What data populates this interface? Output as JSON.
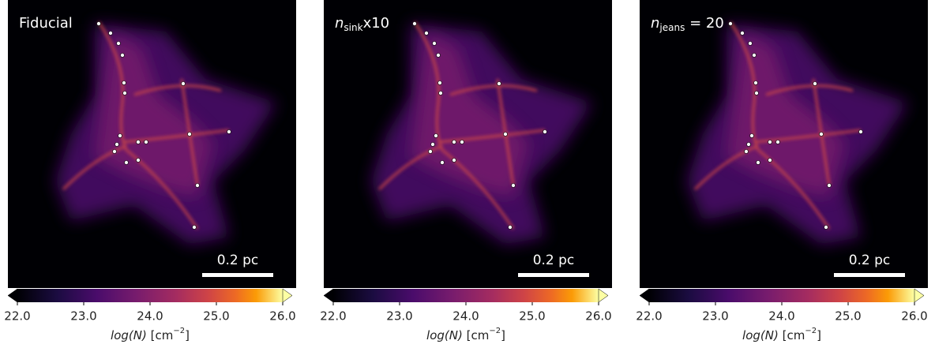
{
  "chart_data": [
    {
      "type": "image",
      "title": "Fiducial",
      "colormap": "inferno",
      "clim": [
        22,
        26
      ],
      "cticks": [
        {
          "value": 22,
          "label": "22.0"
        },
        {
          "value": 23,
          "label": "23.0"
        },
        {
          "value": 24,
          "label": "24.0"
        },
        {
          "value": 25,
          "label": "25.0"
        },
        {
          "value": 26,
          "label": "26.0"
        }
      ],
      "colorbar_label": {
        "main": "log(N)",
        "unit": " [cm",
        "sup": "−2",
        "end": "]"
      },
      "scalebar": "0.2 pc"
    },
    {
      "type": "image",
      "title": {
        "main": "n",
        "sub": "sink",
        "rest": "x10"
      },
      "colormap": "inferno",
      "clim": [
        22,
        26
      ],
      "cticks": [
        {
          "value": 22,
          "label": "22.0"
        },
        {
          "value": 23,
          "label": "23.0"
        },
        {
          "value": 24,
          "label": "24.0"
        },
        {
          "value": 25,
          "label": "25.0"
        },
        {
          "value": 26,
          "label": "26.0"
        }
      ],
      "colorbar_label": {
        "main": "log(N)",
        "unit": " [cm",
        "sup": "−2",
        "end": "]"
      },
      "scalebar": "0.2 pc"
    },
    {
      "type": "image",
      "title": {
        "main": "n",
        "sub": "jeans",
        "rest": " = 20"
      },
      "colormap": "inferno",
      "clim": [
        22,
        26
      ],
      "cticks": [
        {
          "value": 22,
          "label": "22.0"
        },
        {
          "value": 23,
          "label": "23.0"
        },
        {
          "value": 24,
          "label": "24.0"
        },
        {
          "value": 25,
          "label": "25.0"
        },
        {
          "value": 26,
          "label": "26.0"
        }
      ],
      "colorbar_label": {
        "main": "log(N)",
        "unit": " [cm",
        "sup": "−2",
        "end": "]"
      },
      "scalebar": "0.2 pc"
    }
  ]
}
